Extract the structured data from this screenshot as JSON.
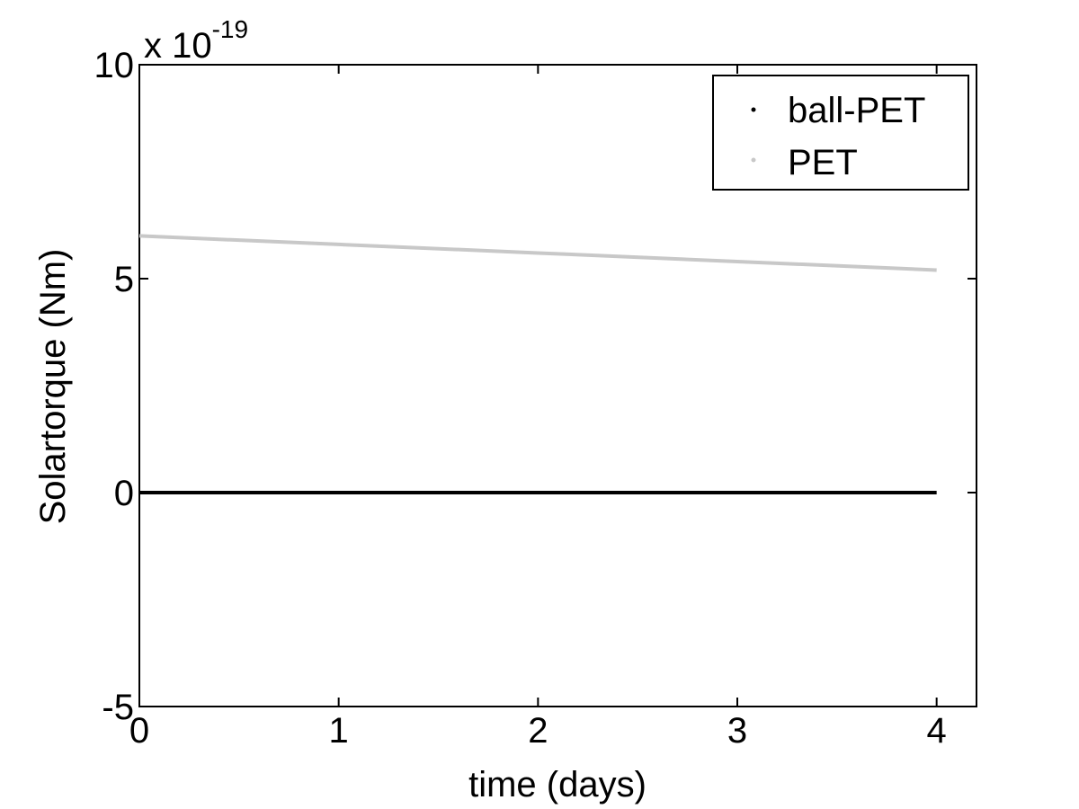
{
  "chart_data": {
    "type": "line",
    "xlabel": "time (days)",
    "ylabel": "Solartorque (Nm)",
    "y_multiplier": {
      "base": "x 10",
      "exponent": "-19"
    },
    "xlim": [
      0,
      4.2
    ],
    "ylim": [
      -5,
      10
    ],
    "x_ticks": [
      0,
      1,
      2,
      3,
      4
    ],
    "x_tick_labels": [
      "0",
      "1",
      "2",
      "3",
      "4"
    ],
    "y_ticks": [
      -5,
      0,
      5,
      10
    ],
    "y_tick_labels": [
      "-5",
      "0",
      "5",
      "10"
    ],
    "grid": false,
    "legend_position": "top-right",
    "series": [
      {
        "name": "ball-PET",
        "color": "#000000",
        "x": [
          0,
          1,
          2,
          3,
          4
        ],
        "y": [
          0,
          0,
          0,
          0,
          0
        ]
      },
      {
        "name": "PET",
        "color": "#c8c8c8",
        "x": [
          0,
          1,
          2,
          3,
          4
        ],
        "y": [
          6.0,
          5.8,
          5.6,
          5.4,
          5.2
        ]
      }
    ]
  }
}
